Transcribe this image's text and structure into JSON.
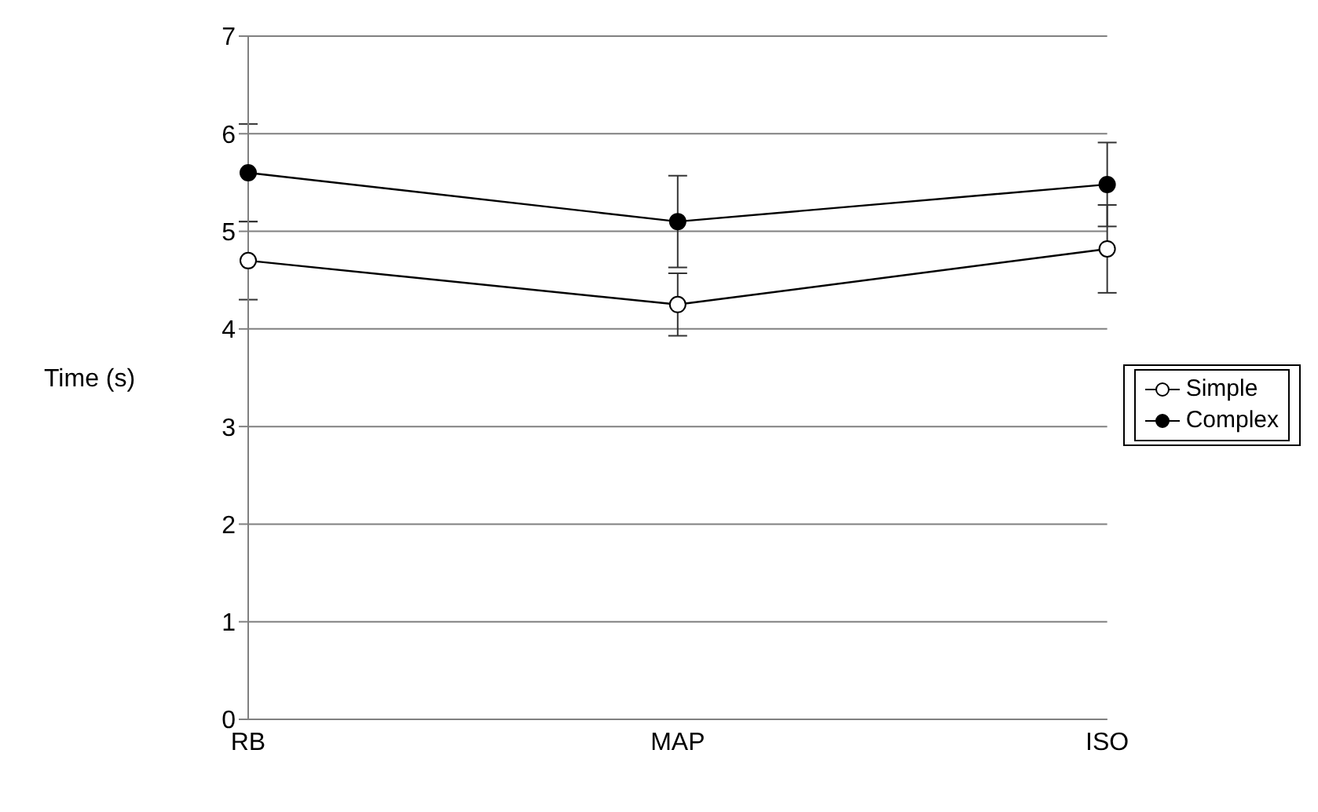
{
  "chart_data": {
    "type": "line",
    "categories": [
      "RB",
      "MAP",
      "ISO"
    ],
    "ylabel": "Time (s)",
    "ylim": [
      0,
      7
    ],
    "yticks": [
      0,
      1,
      2,
      3,
      4,
      5,
      6,
      7
    ],
    "grid": "y",
    "legend": "right",
    "marker": "circle",
    "series": [
      {
        "name": "Simple",
        "color": "#000000",
        "values": [
          4.7,
          4.25,
          4.82
        ],
        "errors": [
          0.4,
          0.32,
          0.45
        ]
      },
      {
        "name": "Complex",
        "color": "#000000",
        "values": [
          5.6,
          5.1,
          5.48
        ],
        "errors": [
          0.5,
          0.47,
          0.43
        ]
      }
    ]
  }
}
